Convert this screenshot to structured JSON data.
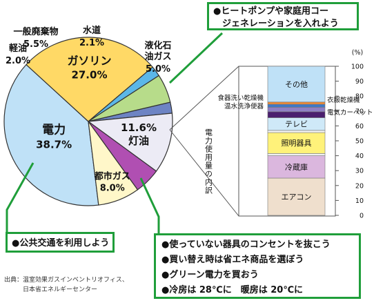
{
  "chart_data": [
    {
      "type": "pie",
      "slices": [
        {
          "label": "電力",
          "value": 38.7,
          "value_text": "38.7%",
          "color": "#bfe1f7"
        },
        {
          "label": "ガソリン",
          "value": 27.0,
          "value_text": "27.0%",
          "color": "#ffd966"
        },
        {
          "label": "軽油",
          "value": 2.0,
          "value_text": "2.0%",
          "color": "#5bb7e8"
        },
        {
          "label": "一般廃棄物",
          "value": 5.5,
          "value_text": "5.5%",
          "color": "#b7dc8a"
        },
        {
          "label": "水道",
          "value": 2.1,
          "value_text": "2.1%",
          "color": "#6d84c4"
        },
        {
          "label": "灯油",
          "value": 11.6,
          "value_text": "11.6%",
          "color": "#ecebf5"
        },
        {
          "label": "液化石油ガス",
          "value": 5.0,
          "value_text": "5.0%",
          "color": "#b04fb2"
        },
        {
          "label": "都市ガス",
          "value": 8.0,
          "value_text": "8.0%",
          "color": "#fff7c9"
        }
      ]
    },
    {
      "type": "bar",
      "stacked": true,
      "ylabel": "電力使用量の内訳",
      "unit": "(%)",
      "ylim": [
        0,
        100
      ],
      "yticks": [
        "0",
        "10",
        "20",
        "30",
        "40",
        "50",
        "60",
        "70",
        "80",
        "90",
        "100"
      ],
      "segments": [
        {
          "label": "エアコン",
          "from": 0,
          "to": 25,
          "color": "#efdfcd"
        },
        {
          "label": "冷蔵庫",
          "from": 25,
          "to": 40,
          "color": "#dbb7de"
        },
        {
          "label": "",
          "from": 40,
          "to": 41.5,
          "color": "#f2f2f2"
        },
        {
          "label": "照明器具",
          "from": 41.5,
          "to": 55.5,
          "color": "#fff27a"
        },
        {
          "label": "",
          "from": 55.5,
          "to": 57,
          "color": "#f2f2f2"
        },
        {
          "label": "テレビ",
          "from": 57,
          "to": 65.5,
          "color": "#cfe9f8"
        },
        {
          "label": "電気カーペット",
          "from": 65.5,
          "to": 69.5,
          "color": "#4a1e6e"
        },
        {
          "label": "温水洗浄便器",
          "from": 69.5,
          "to": 72.5,
          "color": "#8f7fc4"
        },
        {
          "label": "衣服乾燥機",
          "from": 72.5,
          "to": 74.5,
          "color": "#3f78c7"
        },
        {
          "label": "食器洗い乾燥機",
          "from": 74.5,
          "to": 76,
          "color": "#f18a33"
        },
        {
          "label": "その他",
          "from": 76,
          "to": 100,
          "color": "#bfe1f7"
        }
      ]
    }
  ],
  "tips": {
    "top": [
      "●ヒートポンプや家庭用コー",
      "　ジェネレーションを入れよう"
    ],
    "transit": "●公共交通を利用しよう",
    "power": [
      "●使っていない器具のコンセントを抜こう",
      "●買い替え時は省エネ商品を選ぼう",
      "●グリーン電力を買おう",
      "●冷房は 28℃に　暖房は 20℃に"
    ]
  },
  "source": [
    "出典：温室効果ガスインベントリオフィス、",
    "　　　日本省エネルギーセンター"
  ],
  "colors": {
    "accent_green": "#1f9e3a",
    "outline": "#333333"
  }
}
